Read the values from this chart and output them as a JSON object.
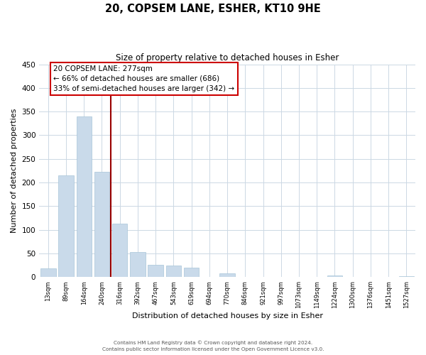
{
  "title": "20, COPSEM LANE, ESHER, KT10 9HE",
  "subtitle": "Size of property relative to detached houses in Esher",
  "xlabel": "Distribution of detached houses by size in Esher",
  "ylabel": "Number of detached properties",
  "bar_color": "#c9daea",
  "bar_edge_color": "#a8c4d8",
  "background_color": "#ffffff",
  "grid_color": "#ccd8e4",
  "bin_labels": [
    "13sqm",
    "89sqm",
    "164sqm",
    "240sqm",
    "316sqm",
    "392sqm",
    "467sqm",
    "543sqm",
    "619sqm",
    "694sqm",
    "770sqm",
    "846sqm",
    "921sqm",
    "997sqm",
    "1073sqm",
    "1149sqm",
    "1224sqm",
    "1300sqm",
    "1376sqm",
    "1451sqm",
    "1527sqm"
  ],
  "bar_values": [
    18,
    215,
    340,
    222,
    113,
    53,
    26,
    25,
    20,
    0,
    8,
    0,
    0,
    0,
    0,
    0,
    3,
    0,
    0,
    0,
    2
  ],
  "ylim": [
    0,
    450
  ],
  "yticks": [
    0,
    50,
    100,
    150,
    200,
    250,
    300,
    350,
    400,
    450
  ],
  "property_line_x": 3.5,
  "property_line_label": "20 COPSEM LANE: 277sqm",
  "annotation_line1": "← 66% of detached houses are smaller (686)",
  "annotation_line2": "33% of semi-detached houses are larger (342) →",
  "vline_color": "#990000",
  "annotation_box_edge_color": "#cc0000",
  "footer_line1": "Contains HM Land Registry data © Crown copyright and database right 2024.",
  "footer_line2": "Contains public sector information licensed under the Open Government Licence v3.0."
}
